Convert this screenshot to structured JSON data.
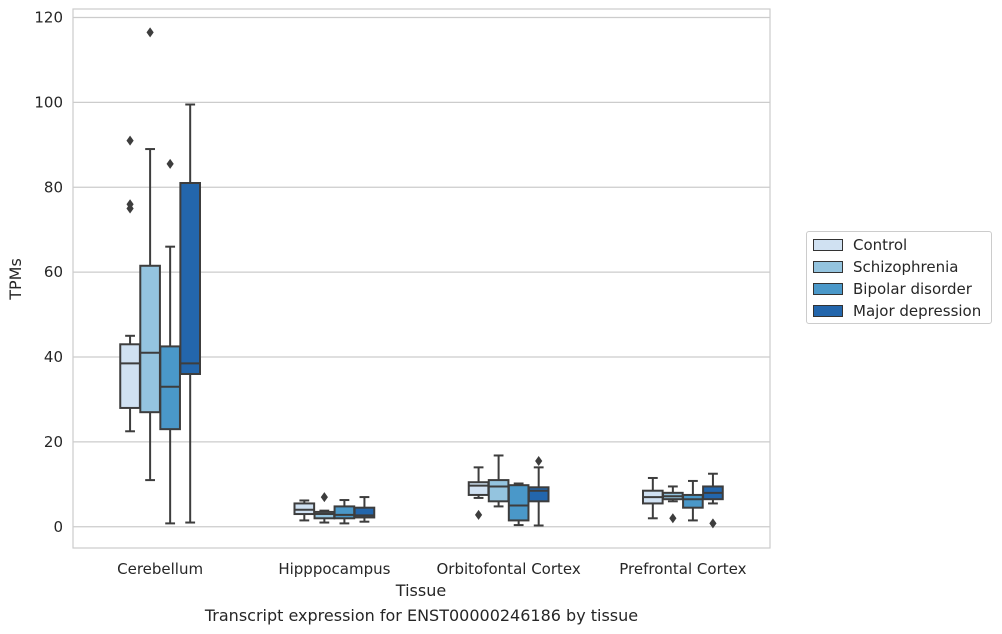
{
  "caption": "Transcript expression for ENST00000246186 by tissue",
  "chart_data": {
    "type": "box",
    "xlabel": "Tissue",
    "ylabel": "TPMs",
    "ylim": [
      -5,
      122
    ],
    "yticks": [
      0,
      20,
      40,
      60,
      80,
      100,
      120
    ],
    "grid": true,
    "legend_position": "right",
    "categories": [
      "Cerebellum",
      "Hipppocampus",
      "Orbitofontal Cortex",
      "Prefrontal Cortex"
    ],
    "series": [
      {
        "name": "Control",
        "color": "#d0e1f2",
        "boxes": [
          {
            "whisker_low": 22.5,
            "q1": 28,
            "median": 38.5,
            "q3": 43,
            "whisker_high": 45,
            "outliers": [
              75,
              76,
              91
            ]
          },
          {
            "whisker_low": 1.5,
            "q1": 3,
            "median": 4,
            "q3": 5.5,
            "whisker_high": 6.2,
            "outliers": []
          },
          {
            "whisker_low": 6.8,
            "q1": 7.5,
            "median": 9.7,
            "q3": 10.5,
            "whisker_high": 14,
            "outliers": [
              2.8
            ]
          },
          {
            "whisker_low": 2,
            "q1": 5.5,
            "median": 7,
            "q3": 8.5,
            "whisker_high": 11.5,
            "outliers": []
          }
        ]
      },
      {
        "name": "Schizophrenia",
        "color": "#94c4df",
        "boxes": [
          {
            "whisker_low": 11,
            "q1": 27,
            "median": 41,
            "q3": 61.5,
            "whisker_high": 89,
            "outliers": [
              116.5
            ]
          },
          {
            "whisker_low": 1,
            "q1": 2,
            "median": 3,
            "q3": 3.5,
            "whisker_high": 3.8,
            "outliers": [
              7
            ]
          },
          {
            "whisker_low": 4.8,
            "q1": 6,
            "median": 9.5,
            "q3": 11,
            "whisker_high": 16.8,
            "outliers": []
          },
          {
            "whisker_low": 6,
            "q1": 6.5,
            "median": 7.2,
            "q3": 8,
            "whisker_high": 9.5,
            "outliers": [
              2
            ]
          }
        ]
      },
      {
        "name": "Bipolar disorder",
        "color": "#4a98c9",
        "boxes": [
          {
            "whisker_low": 0.8,
            "q1": 23,
            "median": 33,
            "q3": 42.5,
            "whisker_high": 66,
            "outliers": [
              85.5
            ]
          },
          {
            "whisker_low": 0.8,
            "q1": 2,
            "median": 2.8,
            "q3": 4.8,
            "whisker_high": 6.3,
            "outliers": []
          },
          {
            "whisker_low": 0.4,
            "q1": 1.5,
            "median": 5,
            "q3": 9.8,
            "whisker_high": 10.2,
            "outliers": []
          },
          {
            "whisker_low": 1.5,
            "q1": 4.5,
            "median": 6.5,
            "q3": 7.5,
            "whisker_high": 10.8,
            "outliers": []
          }
        ]
      },
      {
        "name": "Major depression",
        "color": "#2366ac",
        "boxes": [
          {
            "whisker_low": 1,
            "q1": 36,
            "median": 38.5,
            "q3": 81,
            "whisker_high": 99.5,
            "outliers": []
          },
          {
            "whisker_low": 1.2,
            "q1": 2.2,
            "median": 2.7,
            "q3": 4.5,
            "whisker_high": 7,
            "outliers": []
          },
          {
            "whisker_low": 0.3,
            "q1": 6,
            "median": 8.5,
            "q3": 9.3,
            "whisker_high": 14,
            "outliers": [
              15.5
            ]
          },
          {
            "whisker_low": 5.5,
            "q1": 6.5,
            "median": 8,
            "q3": 9.5,
            "whisker_high": 12.5,
            "outliers": [
              0.8
            ]
          }
        ]
      }
    ]
  }
}
